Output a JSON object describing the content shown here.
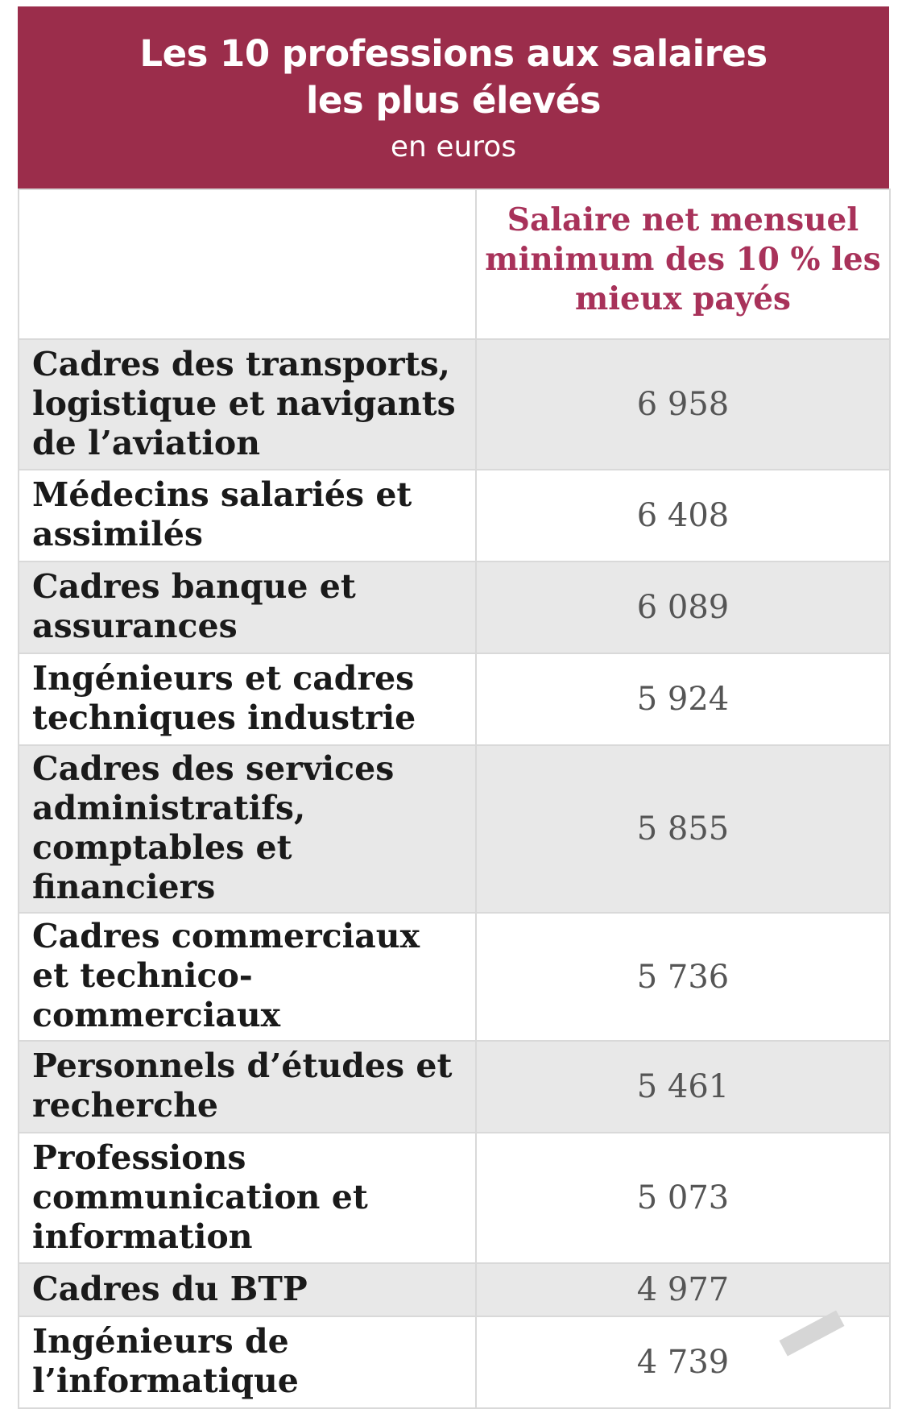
{
  "header": {
    "title_line1": "Les 10 professions aux salaires",
    "title_line2": "les plus élevés",
    "subtitle": "en euros"
  },
  "chart_data": {
    "type": "table",
    "title": "Les 10 professions aux salaires les plus élevés",
    "subtitle": "en euros",
    "column_header": "Salaire net mensuel minimum des 10 % les mieux payés",
    "rows": [
      {
        "label": "Cadres des transports, logistique et navigants de l’aviation",
        "value": "6 958"
      },
      {
        "label": "Médecins salariés et assimilés",
        "value": "6 408"
      },
      {
        "label": "Cadres banque et assurances",
        "value": "6 089"
      },
      {
        "label": "Ingénieurs et cadres techniques industrie",
        "value": "5 924"
      },
      {
        "label": "Cadres des services administratifs, comptables et financiers",
        "value": "5 855"
      },
      {
        "label": "Cadres commerciaux et technico-commerciaux",
        "value": "5 736"
      },
      {
        "label": "Personnels d’études et recherche",
        "value": "5 461"
      },
      {
        "label": "Professions communication et information",
        "value": "5 073"
      },
      {
        "label": "Cadres du BTP",
        "value": "4 977"
      },
      {
        "label": "Ingénieurs de l’informatique",
        "value": "4 739"
      }
    ],
    "values": [
      6958,
      6408,
      6089,
      5924,
      5855,
      5736,
      5461,
      5073,
      4977,
      4739
    ]
  },
  "colors": {
    "header_bg": "#9b2d4b",
    "column_header_text": "#a8325a",
    "row_shade": "#e8e8e8"
  }
}
